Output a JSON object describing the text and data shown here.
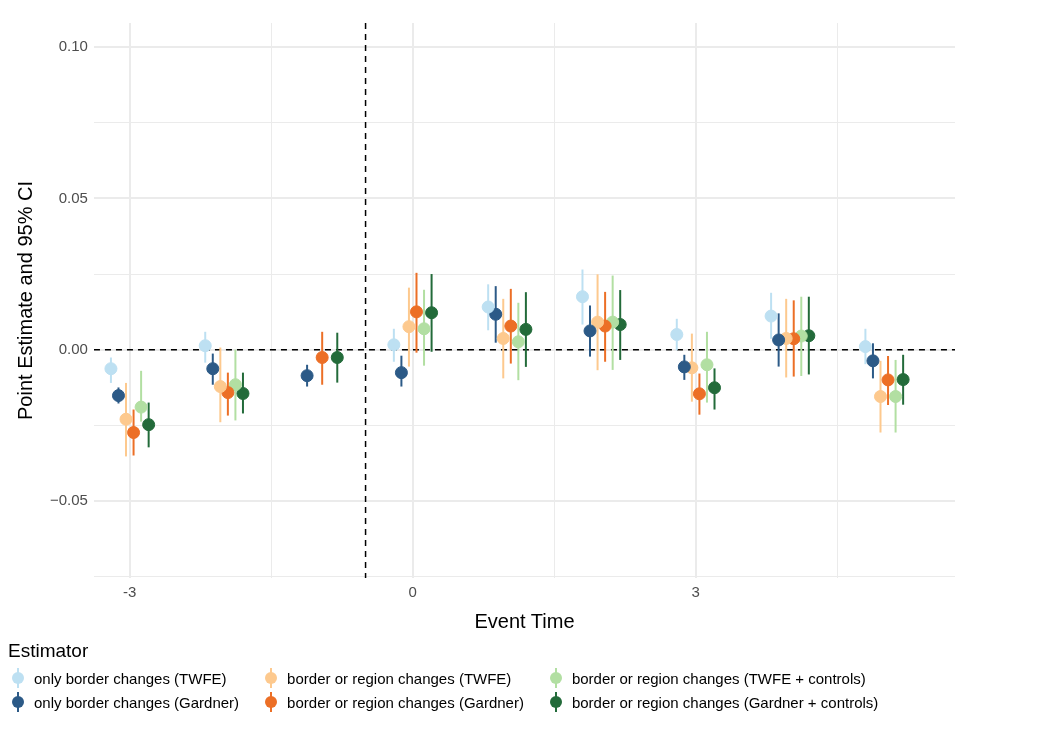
{
  "chart_data": {
    "type": "scatter",
    "xlabel": "Event Time",
    "ylabel": "Point Estimate and 95% CI",
    "legend_title": "Estimator",
    "xlim": [
      -3.38,
      5.75
    ],
    "ylim": [
      -0.0755,
      0.108
    ],
    "xticks": [
      -3,
      {
        "value": -1.5,
        "label": null
      },
      0,
      {
        "value": 1.5,
        "label": null
      },
      3,
      {
        "value": 4.5,
        "label": null
      }
    ],
    "yticks": [
      {
        "value": -0.075,
        "label": null
      },
      {
        "value": -0.05,
        "label": "−0.05"
      },
      {
        "value": -0.025,
        "label": null
      },
      {
        "value": 0,
        "label": "0.00"
      },
      {
        "value": 0.025,
        "label": null
      },
      {
        "value": 0.05,
        "label": "0.05"
      },
      {
        "value": 0.075,
        "label": null
      },
      {
        "value": 0.1,
        "label": "0.10"
      }
    ],
    "grid": true,
    "legend": "bottom",
    "marker": "circle",
    "ref_lines": [
      {
        "axis": "y",
        "value": 0,
        "color": "#000000",
        "line_style": "dashed"
      },
      {
        "axis": "x",
        "value": -0.5,
        "color": "#000000",
        "line_style": "dashed"
      }
    ],
    "series": [
      {
        "name": "only border changes (TWFE)",
        "color": "#bde0f2",
        "x": [
          -3.2,
          -2.2,
          -0.2,
          0.8,
          1.8,
          2.8,
          3.8,
          4.8
        ],
        "values": [
          -0.0063,
          0.0013,
          0.0016,
          0.0141,
          0.0175,
          0.005,
          0.0111,
          0.001
        ],
        "errors": [
          [
            -0.011,
            -0.0026
          ],
          [
            -0.0043,
            0.0059
          ],
          [
            -0.004,
            0.0069
          ],
          [
            0.0064,
            0.0216
          ],
          [
            0.0083,
            0.0265
          ],
          [
            -0.0002,
            0.0102
          ],
          [
            0.0036,
            0.0188
          ],
          [
            -0.0048,
            0.0069
          ]
        ]
      },
      {
        "name": "only border changes (Gardner)",
        "color": "#2c5a87",
        "x": [
          -3.12,
          -2.12,
          -1.12,
          -0.12,
          0.88,
          1.88,
          2.88,
          3.88,
          4.88
        ],
        "values": [
          -0.0152,
          -0.0063,
          -0.0086,
          -0.0076,
          0.0117,
          0.0062,
          -0.0057,
          0.0032,
          -0.0037
        ],
        "errors": [
          [
            -0.0178,
            -0.0125
          ],
          [
            -0.0116,
            -0.0013
          ],
          [
            -0.0122,
            -0.005
          ],
          [
            -0.0122,
            -0.002
          ],
          [
            0.0023,
            0.021
          ],
          [
            -0.0023,
            0.0146
          ],
          [
            -0.01,
            -0.0017
          ],
          [
            -0.0056,
            0.012
          ],
          [
            -0.0095,
            0.0021
          ]
        ]
      },
      {
        "name": "border or region changes (TWFE)",
        "color": "#fdc98e",
        "x": [
          -3.04,
          -2.04,
          -0.04,
          0.96,
          1.96,
          2.96,
          3.96,
          4.96
        ],
        "values": [
          -0.023,
          -0.0122,
          0.0076,
          0.0037,
          0.0091,
          -0.006,
          0.0037,
          -0.0155
        ],
        "errors": [
          [
            -0.0353,
            -0.011
          ],
          [
            -0.024,
            0.0007
          ],
          [
            -0.0056,
            0.0205
          ],
          [
            -0.0095,
            0.0168
          ],
          [
            -0.0068,
            0.0249
          ],
          [
            -0.0172,
            0.0053
          ],
          [
            -0.0092,
            0.0168
          ],
          [
            -0.0274,
            -0.0037
          ]
        ]
      },
      {
        "name": "border or region changes (Gardner)",
        "color": "#ec6f26",
        "x": [
          -2.96,
          -1.96,
          -0.96,
          0.04,
          1.04,
          2.04,
          3.04,
          4.04,
          5.04
        ],
        "values": [
          -0.0274,
          -0.0142,
          -0.0026,
          0.0125,
          0.0078,
          0.0078,
          -0.0146,
          0.0036,
          -0.01
        ],
        "errors": [
          [
            -0.035,
            -0.0198
          ],
          [
            -0.0218,
            -0.0076
          ],
          [
            -0.0116,
            0.0059
          ],
          [
            -0.001,
            0.0254
          ],
          [
            -0.0046,
            0.0201
          ],
          [
            -0.004,
            0.0191
          ],
          [
            -0.0215,
            -0.0079
          ],
          [
            -0.0089,
            0.0163
          ],
          [
            -0.0183,
            -0.0021
          ]
        ]
      },
      {
        "name": "border or region changes (TWFE + controls)",
        "color": "#b2dfa2",
        "x": [
          -2.88,
          -1.88,
          0.12,
          1.12,
          2.12,
          3.12,
          4.12,
          5.12
        ],
        "values": [
          -0.019,
          -0.0116,
          0.0069,
          0.0026,
          0.0091,
          -0.005,
          0.0045,
          -0.0155
        ],
        "errors": [
          [
            -0.0238,
            -0.007
          ],
          [
            -0.0234,
            0
          ],
          [
            -0.0053,
            0.0198
          ],
          [
            -0.0101,
            0.0155
          ],
          [
            -0.0067,
            0.0245
          ],
          [
            -0.0175,
            0.0059
          ],
          [
            -0.0087,
            0.0175
          ],
          [
            -0.0274,
            -0.0034
          ]
        ]
      },
      {
        "name": "border or region changes (Gardner + controls)",
        "color": "#236b3a",
        "x": [
          -2.8,
          -1.8,
          -0.8,
          0.2,
          1.2,
          2.2,
          3.2,
          4.2,
          5.2
        ],
        "values": [
          -0.0248,
          -0.0145,
          -0.0026,
          0.0122,
          0.0067,
          0.0083,
          -0.0126,
          0.0046,
          -0.0099
        ],
        "errors": [
          [
            -0.0323,
            -0.0175
          ],
          [
            -0.0211,
            -0.0076
          ],
          [
            -0.0109,
            0.0056
          ],
          [
            -0.0007,
            0.025
          ],
          [
            -0.0057,
            0.019
          ],
          [
            -0.0034,
            0.0197
          ],
          [
            -0.0198,
            -0.0062
          ],
          [
            -0.0082,
            0.0175
          ],
          [
            -0.0182,
            -0.0017
          ]
        ]
      }
    ]
  }
}
